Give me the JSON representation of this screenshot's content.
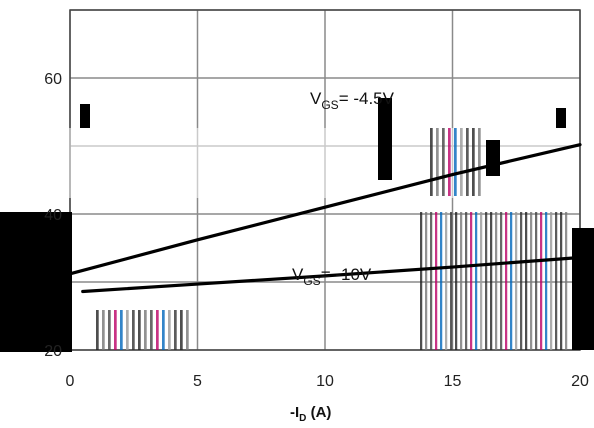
{
  "chart_data": {
    "type": "line",
    "xlabel": "-I",
    "xlabel_sub": "D",
    "xlabel_unit": " (A)",
    "xlim": [
      0,
      20
    ],
    "ylim": [
      20,
      70
    ],
    "x_ticks": [
      "0",
      "5",
      "10",
      "15",
      "20"
    ],
    "y_ticks": [
      "60",
      "40",
      "20"
    ],
    "y_tick_values": [
      60,
      40,
      20
    ],
    "grid": true,
    "series": [
      {
        "label_main": "V",
        "label_sub": "GS",
        "label_rest": "= -4.5V",
        "color": "#000000",
        "x": [
          -2,
          0,
          5,
          10,
          15,
          20
        ],
        "y": [
          29.5,
          31.2,
          36.2,
          41.0,
          45.8,
          50.2
        ]
      },
      {
        "label_main": "V",
        "label_sub": "GS",
        "label_rest": "= -10V",
        "color": "#000000",
        "x": [
          0.5,
          5,
          10,
          15,
          20
        ],
        "y": [
          28.6,
          29.7,
          30.9,
          32.2,
          33.6
        ]
      }
    ]
  }
}
